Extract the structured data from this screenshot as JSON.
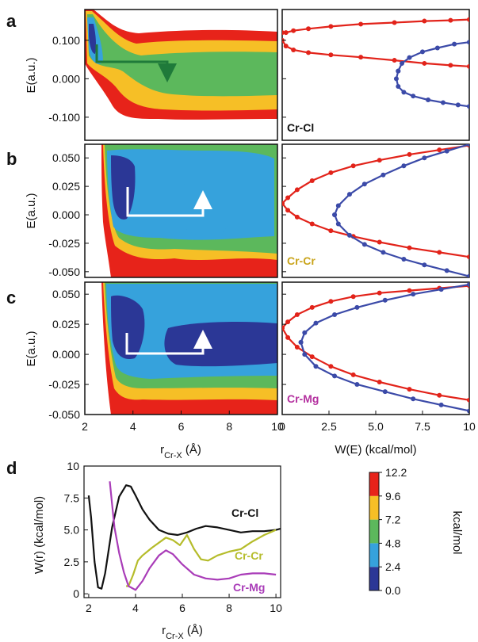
{
  "panel_labels": [
    "a",
    "b",
    "c",
    "d"
  ],
  "colors": {
    "red": "#e2231a",
    "blue": "#3b4aa8",
    "black": "#111111",
    "olive": "#b5bc2a",
    "magenta": "#a93cb8",
    "green_arrow": "#1f7a3a",
    "white_arrow": "#ffffff"
  },
  "contour_levels": {
    "colors": [
      "#2b3796",
      "#36a2dc",
      "#5cb85c",
      "#f6bf26",
      "#e7231a"
    ],
    "tick_labels": [
      "12.2",
      "9.6",
      "7.2",
      "4.8",
      "2.4",
      "0.0"
    ],
    "values": [
      12.2,
      9.6,
      7.2,
      4.8,
      2.4,
      0.0
    ],
    "unit_label": "kcal/mol"
  },
  "chart_data": [
    {
      "type": "heatmap",
      "panel": "a",
      "ylabel": "E(a.u.)",
      "xlim": [
        2,
        10
      ],
      "ylim": [
        -0.16,
        0.18
      ],
      "yticks": [
        "0.100",
        "0.000",
        "-0.100"
      ],
      "ytick_values": [
        0.1,
        0.0,
        -0.1
      ]
    },
    {
      "type": "line",
      "panel": "a",
      "label": "Cr-Cl",
      "xlim": [
        0,
        10
      ],
      "ylim": [
        -0.16,
        0.18
      ],
      "series": [
        {
          "color": "red",
          "x": [
            0.0,
            0.2,
            0.6,
            1.4,
            2.6,
            4.2,
            6.0,
            7.6,
            9.0,
            10.0
          ],
          "y": [
            0.12,
            0.12,
            0.125,
            0.13,
            0.136,
            0.142,
            0.146,
            0.15,
            0.152,
            0.154
          ]
        },
        {
          "color": "red",
          "x": [
            0.0,
            0.2,
            0.6,
            1.4,
            2.6,
            4.2,
            6.0,
            7.6,
            9.0,
            10.0
          ],
          "y": [
            0.1,
            0.085,
            0.075,
            0.068,
            0.062,
            0.056,
            0.048,
            0.04,
            0.035,
            0.032
          ]
        },
        {
          "color": "blue",
          "x": [
            6.2,
            6.1,
            6.2,
            6.5,
            7.0,
            7.8,
            8.6,
            9.4,
            10.0
          ],
          "y": [
            0.02,
            0.0,
            -0.02,
            -0.035,
            -0.045,
            -0.055,
            -0.062,
            -0.068,
            -0.072
          ]
        },
        {
          "color": "blue",
          "x": [
            6.2,
            6.4,
            6.8,
            7.5,
            8.3,
            9.2,
            10.0
          ],
          "y": [
            0.02,
            0.04,
            0.055,
            0.07,
            0.08,
            0.09,
            0.095
          ]
        }
      ]
    },
    {
      "type": "heatmap",
      "panel": "b",
      "ylabel": "E(a.u.)",
      "xlim": [
        2,
        10
      ],
      "ylim": [
        -0.055,
        0.062
      ],
      "yticks": [
        "0.050",
        "0.025",
        "0.000",
        "-0.025",
        "-0.050"
      ],
      "ytick_values": [
        0.05,
        0.025,
        0.0,
        -0.025,
        -0.05
      ]
    },
    {
      "type": "line",
      "panel": "b",
      "label": "Cr-Cr",
      "xlim": [
        0,
        10
      ],
      "ylim": [
        -0.055,
        0.062
      ],
      "series": [
        {
          "color": "red",
          "x": [
            0.0,
            0.3,
            0.8,
            1.6,
            2.6,
            3.8,
            5.2,
            6.8,
            8.4,
            10.0
          ],
          "y": [
            0.01,
            0.015,
            0.022,
            0.03,
            0.037,
            0.043,
            0.048,
            0.053,
            0.057,
            0.061
          ]
        },
        {
          "color": "red",
          "x": [
            0.0,
            0.3,
            0.8,
            1.6,
            2.6,
            3.8,
            5.2,
            6.8,
            8.4,
            10.0
          ],
          "y": [
            0.01,
            0.004,
            -0.002,
            -0.008,
            -0.014,
            -0.019,
            -0.024,
            -0.029,
            -0.033,
            -0.037
          ]
        },
        {
          "color": "blue",
          "x": [
            2.8,
            3.0,
            3.6,
            4.4,
            5.4,
            6.5,
            7.6,
            8.8,
            10.0
          ],
          "y": [
            0.0,
            0.008,
            0.018,
            0.027,
            0.035,
            0.043,
            0.05,
            0.056,
            0.062
          ]
        },
        {
          "color": "blue",
          "x": [
            2.8,
            3.0,
            3.6,
            4.4,
            5.4,
            6.5,
            7.6,
            8.8,
            10.0
          ],
          "y": [
            0.0,
            -0.008,
            -0.018,
            -0.026,
            -0.033,
            -0.039,
            -0.044,
            -0.049,
            -0.054
          ]
        }
      ]
    },
    {
      "type": "heatmap",
      "panel": "c",
      "ylabel": "E(a.u.)",
      "xlim": [
        2,
        10
      ],
      "ylim": [
        -0.05,
        0.06
      ],
      "yticks": [
        "0.050",
        "0.025",
        "0.000",
        "-0.025",
        "-0.050"
      ],
      "ytick_values": [
        0.05,
        0.025,
        0.0,
        -0.025,
        -0.05
      ],
      "xticks": [
        "2",
        "4",
        "6",
        "8",
        "10"
      ],
      "xlabel": "r",
      "xlabel_sub": "Cr-X",
      "xlabel_unit": " (Å)"
    },
    {
      "type": "line",
      "panel": "c",
      "label": "Cr-Mg",
      "xlim": [
        0,
        10
      ],
      "ylim": [
        -0.05,
        0.06
      ],
      "xticks": [
        "0",
        "2.5",
        "5.0",
        "7.5",
        "10"
      ],
      "xlabel": "W(E) (kcal/mol)",
      "series": [
        {
          "color": "red",
          "x": [
            0.0,
            0.3,
            0.8,
            1.6,
            2.6,
            3.8,
            5.2,
            6.8,
            8.4,
            10.0
          ],
          "y": [
            0.022,
            0.027,
            0.033,
            0.039,
            0.044,
            0.048,
            0.051,
            0.053,
            0.055,
            0.057
          ]
        },
        {
          "color": "red",
          "x": [
            0.0,
            0.3,
            0.8,
            1.6,
            2.6,
            3.8,
            5.2,
            6.8,
            8.4,
            10.0
          ],
          "y": [
            0.022,
            0.014,
            0.006,
            -0.002,
            -0.01,
            -0.017,
            -0.023,
            -0.029,
            -0.034,
            -0.038
          ]
        },
        {
          "color": "blue",
          "x": [
            1.0,
            1.2,
            1.8,
            2.8,
            4.0,
            5.5,
            7.0,
            8.5,
            10.0
          ],
          "y": [
            0.01,
            0.018,
            0.026,
            0.033,
            0.039,
            0.045,
            0.05,
            0.054,
            0.058
          ]
        },
        {
          "color": "blue",
          "x": [
            1.0,
            1.2,
            1.8,
            2.8,
            4.0,
            5.5,
            7.0,
            8.5,
            10.0
          ],
          "y": [
            0.01,
            0.0,
            -0.01,
            -0.018,
            -0.025,
            -0.031,
            -0.037,
            -0.042,
            -0.047
          ]
        }
      ]
    },
    {
      "type": "line",
      "panel": "d",
      "ylabel": "W(r)  (kcal/mol)",
      "xlabel": "r",
      "xlabel_sub": "Cr-X",
      "xlabel_unit": " (Å)",
      "xlim": [
        1.8,
        10.2
      ],
      "ylim": [
        -0.3,
        10
      ],
      "xticks": [
        "2",
        "4",
        "6",
        "8",
        "10"
      ],
      "yticks": [
        "0",
        "2.5",
        "5.0",
        "7.5",
        "10"
      ],
      "series": [
        {
          "name": "Cr-Cl",
          "color": "black",
          "x": [
            2.0,
            2.1,
            2.25,
            2.4,
            2.55,
            2.7,
            3.0,
            3.3,
            3.6,
            3.8,
            4.0,
            4.3,
            4.6,
            5.0,
            5.4,
            5.8,
            6.2,
            6.6,
            7.0,
            7.5,
            8.0,
            8.5,
            9.0,
            9.5,
            10.0,
            10.2
          ],
          "y": [
            7.7,
            6.0,
            2.5,
            0.5,
            0.4,
            1.6,
            5.2,
            7.6,
            8.5,
            8.4,
            7.7,
            6.6,
            5.8,
            5.0,
            4.7,
            4.6,
            4.8,
            5.1,
            5.3,
            5.2,
            5.0,
            4.8,
            4.9,
            4.9,
            5.0,
            5.1
          ]
        },
        {
          "name": "Cr-Cr",
          "color": "olive",
          "x": [
            3.6,
            3.7,
            3.9,
            4.1,
            4.3,
            4.5,
            4.7,
            5.0,
            5.3,
            5.6,
            5.9,
            6.2,
            6.5,
            6.8,
            7.1,
            7.5,
            8.0,
            8.5,
            9.0,
            9.5,
            10.0
          ],
          "y": [
            0.6,
            0.6,
            1.5,
            2.6,
            3.0,
            3.3,
            3.6,
            4.0,
            4.4,
            4.2,
            3.8,
            4.6,
            3.5,
            2.7,
            2.6,
            3.0,
            3.3,
            3.5,
            4.1,
            4.6,
            5.0
          ]
        },
        {
          "name": "Cr-Mg",
          "color": "magenta",
          "x": [
            2.9,
            3.0,
            3.1,
            3.3,
            3.5,
            3.7,
            4.0,
            4.3,
            4.6,
            5.0,
            5.3,
            5.6,
            6.0,
            6.5,
            7.0,
            7.5,
            8.0,
            8.5,
            9.0,
            9.5,
            10.0
          ],
          "y": [
            8.8,
            7.0,
            5.2,
            3.2,
            1.7,
            0.6,
            0.3,
            1.0,
            2.0,
            3.0,
            3.4,
            3.1,
            2.3,
            1.5,
            1.2,
            1.1,
            1.2,
            1.5,
            1.6,
            1.6,
            1.5
          ]
        }
      ]
    }
  ]
}
